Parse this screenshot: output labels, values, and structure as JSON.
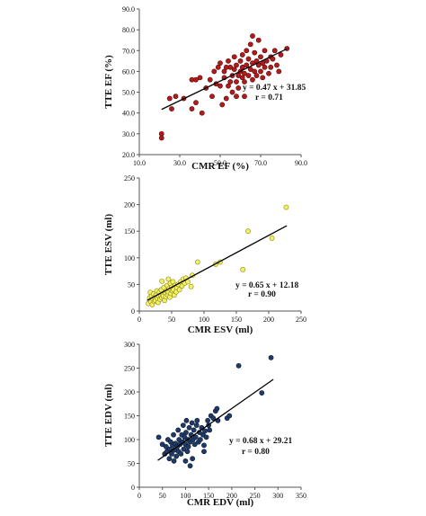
{
  "chart_data": [
    {
      "type": "scatter",
      "xlabel": "CMR EF (%)",
      "ylabel": "TTE EF (%)",
      "xlim": [
        10,
        90
      ],
      "ylim": [
        20,
        90
      ],
      "xticks": [
        "10.0",
        "30.0",
        "50.0",
        "70.0",
        "90.0"
      ],
      "yticks": [
        "20.0",
        "30.0",
        "40.0",
        "50.0",
        "60.0",
        "70.0",
        "80.0",
        "90.0"
      ],
      "marker_color": "#b01c1c",
      "marker_edge": "#5a0a0a",
      "equation": "y = 0.47 x + 31.85",
      "r_label": "r = 0.71",
      "trend": {
        "slope": 0.47,
        "intercept": 31.85,
        "x_range": [
          21,
          83
        ]
      },
      "points": [
        [
          21,
          30
        ],
        [
          21,
          28
        ],
        [
          25,
          47
        ],
        [
          26,
          42
        ],
        [
          28,
          48
        ],
        [
          32,
          47
        ],
        [
          36,
          42
        ],
        [
          36,
          56
        ],
        [
          38,
          56
        ],
        [
          38,
          45
        ],
        [
          40,
          57
        ],
        [
          41,
          40
        ],
        [
          43,
          52
        ],
        [
          46,
          48
        ],
        [
          47,
          60
        ],
        [
          48,
          54
        ],
        [
          49,
          62
        ],
        [
          50,
          53
        ],
        [
          50,
          64
        ],
        [
          51,
          44
        ],
        [
          52,
          57
        ],
        [
          52,
          60
        ],
        [
          53,
          47
        ],
        [
          53,
          62
        ],
        [
          54,
          53
        ],
        [
          54,
          65
        ],
        [
          55,
          55
        ],
        [
          55,
          62
        ],
        [
          56,
          50
        ],
        [
          56,
          58
        ],
        [
          57,
          61
        ],
        [
          57,
          67
        ],
        [
          58,
          55
        ],
        [
          58,
          63
        ],
        [
          59,
          52
        ],
        [
          59,
          58
        ],
        [
          60,
          60
        ],
        [
          60,
          65
        ],
        [
          61,
          57
        ],
        [
          61,
          62
        ],
        [
          61,
          68
        ],
        [
          62,
          55
        ],
        [
          62,
          59
        ],
        [
          63,
          63
        ],
        [
          63,
          70
        ],
        [
          64,
          58
        ],
        [
          64,
          66
        ],
        [
          65,
          61
        ],
        [
          65,
          73
        ],
        [
          66,
          56
        ],
        [
          66,
          64
        ],
        [
          66,
          77
        ],
        [
          67,
          60
        ],
        [
          67,
          69
        ],
        [
          68,
          58
        ],
        [
          68,
          65
        ],
        [
          69,
          63
        ],
        [
          69,
          75
        ],
        [
          70,
          60
        ],
        [
          70,
          67
        ],
        [
          71,
          57
        ],
        [
          71,
          64
        ],
        [
          72,
          62
        ],
        [
          72,
          70
        ],
        [
          73,
          65
        ],
        [
          74,
          59
        ],
        [
          75,
          67
        ],
        [
          75,
          62
        ],
        [
          76,
          66
        ],
        [
          77,
          70
        ],
        [
          78,
          63
        ],
        [
          79,
          60
        ],
        [
          80,
          68
        ],
        [
          83,
          71
        ],
        [
          45,
          56
        ],
        [
          58,
          48
        ],
        [
          62,
          48
        ]
      ]
    },
    {
      "type": "scatter",
      "xlabel": "CMR ESV (ml)",
      "ylabel": "TTE ESV (ml)",
      "xlim": [
        0,
        250
      ],
      "ylim": [
        0,
        250
      ],
      "xticks": [
        "0",
        "50",
        "100",
        "150",
        "200",
        "250"
      ],
      "yticks": [
        "0",
        "50",
        "100",
        "150",
        "200",
        "250"
      ],
      "marker_color": "#f4f06a",
      "marker_edge": "#8a8a10",
      "equation": "y = 0.65 x + 12.18",
      "r_label": "r = 0.90",
      "trend": {
        "slope": 0.65,
        "intercept": 12.18,
        "x_range": [
          12,
          228
        ]
      },
      "points": [
        [
          14,
          14
        ],
        [
          16,
          25
        ],
        [
          17,
          35
        ],
        [
          18,
          18
        ],
        [
          19,
          28
        ],
        [
          20,
          12
        ],
        [
          21,
          22
        ],
        [
          22,
          32
        ],
        [
          23,
          18
        ],
        [
          24,
          26
        ],
        [
          25,
          20
        ],
        [
          26,
          30
        ],
        [
          27,
          38
        ],
        [
          28,
          24
        ],
        [
          29,
          16
        ],
        [
          30,
          28
        ],
        [
          31,
          35
        ],
        [
          32,
          22
        ],
        [
          33,
          30
        ],
        [
          34,
          40
        ],
        [
          35,
          25
        ],
        [
          36,
          32
        ],
        [
          37,
          28
        ],
        [
          38,
          44
        ],
        [
          39,
          20
        ],
        [
          40,
          34
        ],
        [
          41,
          27
        ],
        [
          42,
          38
        ],
        [
          43,
          48
        ],
        [
          44,
          30
        ],
        [
          45,
          36
        ],
        [
          46,
          42
        ],
        [
          47,
          26
        ],
        [
          48,
          52
        ],
        [
          49,
          33
        ],
        [
          50,
          45
        ],
        [
          51,
          38
        ],
        [
          52,
          55
        ],
        [
          53,
          40
        ],
        [
          54,
          30
        ],
        [
          55,
          48
        ],
        [
          57,
          36
        ],
        [
          58,
          44
        ],
        [
          60,
          50
        ],
        [
          62,
          40
        ],
        [
          64,
          55
        ],
        [
          66,
          47
        ],
        [
          68,
          60
        ],
        [
          70,
          52
        ],
        [
          72,
          62
        ],
        [
          75,
          55
        ],
        [
          80,
          46
        ],
        [
          82,
          67
        ],
        [
          90,
          92
        ],
        [
          118,
          88
        ],
        [
          125,
          92
        ],
        [
          160,
          78
        ],
        [
          168,
          150
        ],
        [
          205,
          137
        ],
        [
          227,
          195
        ],
        [
          35,
          56
        ],
        [
          45,
          60
        ]
      ]
    },
    {
      "type": "scatter",
      "xlabel": "CMR EDV (ml)",
      "ylabel": "TTE EDV (ml)",
      "xlim": [
        0,
        350
      ],
      "ylim": [
        0,
        300
      ],
      "xticks": [
        "0",
        "50",
        "100",
        "150",
        "200",
        "250",
        "300",
        "350"
      ],
      "yticks": [
        "0",
        "50",
        "100",
        "150",
        "200",
        "250",
        "300"
      ],
      "marker_color": "#1f3a66",
      "marker_edge": "#0e1d36",
      "equation": "y = 0.68 x + 29.21",
      "r_label": "r = 0.80",
      "trend": {
        "slope": 0.68,
        "intercept": 29.21,
        "x_range": [
          40,
          290
        ]
      },
      "points": [
        [
          42,
          105
        ],
        [
          50,
          90
        ],
        [
          55,
          70
        ],
        [
          58,
          85
        ],
        [
          60,
          75
        ],
        [
          62,
          100
        ],
        [
          65,
          60
        ],
        [
          66,
          80
        ],
        [
          68,
          95
        ],
        [
          70,
          70
        ],
        [
          72,
          88
        ],
        [
          74,
          110
        ],
        [
          75,
          55
        ],
        [
          76,
          78
        ],
        [
          78,
          92
        ],
        [
          80,
          65
        ],
        [
          82,
          85
        ],
        [
          84,
          120
        ],
        [
          85,
          75
        ],
        [
          86,
          100
        ],
        [
          88,
          90
        ],
        [
          90,
          70
        ],
        [
          92,
          110
        ],
        [
          94,
          95
        ],
        [
          95,
          130
        ],
        [
          96,
          80
        ],
        [
          98,
          105
        ],
        [
          100,
          90
        ],
        [
          101,
          115
        ],
        [
          102,
          140
        ],
        [
          104,
          75
        ],
        [
          105,
          100
        ],
        [
          106,
          85
        ],
        [
          108,
          125
        ],
        [
          110,
          95
        ],
        [
          112,
          110
        ],
        [
          114,
          135
        ],
        [
          115,
          60
        ],
        [
          116,
          100
        ],
        [
          118,
          120
        ],
        [
          120,
          90
        ],
        [
          122,
          105
        ],
        [
          124,
          130
        ],
        [
          125,
          140
        ],
        [
          128,
          95
        ],
        [
          130,
          115
        ],
        [
          132,
          100
        ],
        [
          135,
          125
        ],
        [
          138,
          110
        ],
        [
          140,
          88
        ],
        [
          142,
          118
        ],
        [
          145,
          105
        ],
        [
          148,
          140
        ],
        [
          150,
          130
        ],
        [
          152,
          120
        ],
        [
          155,
          150
        ],
        [
          160,
          145
        ],
        [
          165,
          160
        ],
        [
          168,
          165
        ],
        [
          170,
          140
        ],
        [
          190,
          145
        ],
        [
          195,
          150
        ],
        [
          215,
          255
        ],
        [
          265,
          198
        ],
        [
          285,
          272
        ],
        [
          110,
          45
        ],
        [
          100,
          55
        ],
        [
          140,
          75
        ]
      ]
    }
  ]
}
